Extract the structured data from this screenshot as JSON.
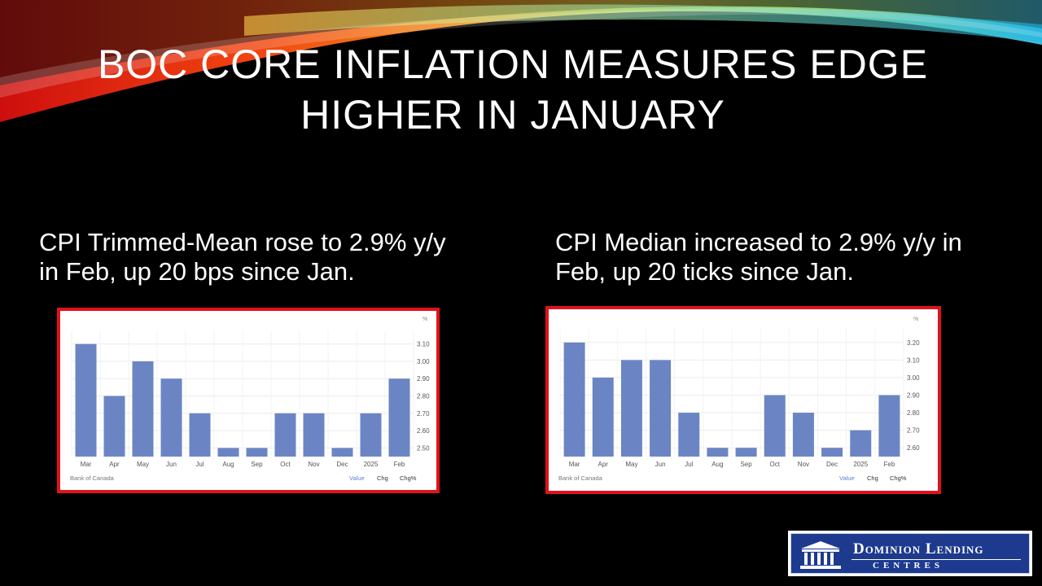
{
  "slide": {
    "title": "BOC CORE INFLATION MEASURES EDGE HIGHER IN JANUARY"
  },
  "left": {
    "caption": "CPI Trimmed-Mean rose to 2.9% y/y in Feb, up 20 bps since Jan."
  },
  "right": {
    "caption": "CPI Median increased to 2.9% y/y in Feb, up 20 ticks since Jan."
  },
  "logo": {
    "line1": "Dominion Lending",
    "line2": "CENTRES"
  },
  "colors": {
    "bar": "#6b85c4",
    "frame": "#e0121b",
    "tab_active": "#5b7fd6",
    "background": "#000000"
  },
  "chart_data": [
    {
      "type": "bar",
      "categories": [
        "Mar",
        "Apr",
        "May",
        "Jun",
        "Jul",
        "Aug",
        "Sep",
        "Oct",
        "Nov",
        "Dec",
        "2025",
        "Feb"
      ],
      "values": [
        3.1,
        2.8,
        3.0,
        2.9,
        2.7,
        2.5,
        2.5,
        2.7,
        2.7,
        2.5,
        2.7,
        2.9
      ],
      "yticks": [
        "3.10",
        "3.00",
        "2.90",
        "2.80",
        "2.70",
        "2.60",
        "2.50"
      ],
      "ylim": [
        2.45,
        3.15
      ],
      "unit": "%",
      "source": "Bank of Canada",
      "tabs": [
        "Value",
        "Chg",
        "Chg%"
      ],
      "active_tab": "Value",
      "grid": true,
      "legend": "none"
    },
    {
      "type": "bar",
      "categories": [
        "Mar",
        "Apr",
        "May",
        "Jun",
        "Jul",
        "Aug",
        "Sep",
        "Oct",
        "Nov",
        "Dec",
        "2025",
        "Feb"
      ],
      "values": [
        3.2,
        3.0,
        3.1,
        3.1,
        2.8,
        2.6,
        2.6,
        2.9,
        2.8,
        2.6,
        2.7,
        2.9
      ],
      "yticks": [
        "3.20",
        "3.10",
        "3.00",
        "2.90",
        "2.80",
        "2.70",
        "2.60"
      ],
      "ylim": [
        2.55,
        3.25
      ],
      "unit": "%",
      "source": "Bank of Canada",
      "tabs": [
        "Value",
        "Chg",
        "Chg%"
      ],
      "active_tab": "Value",
      "grid": true,
      "legend": "none"
    }
  ]
}
